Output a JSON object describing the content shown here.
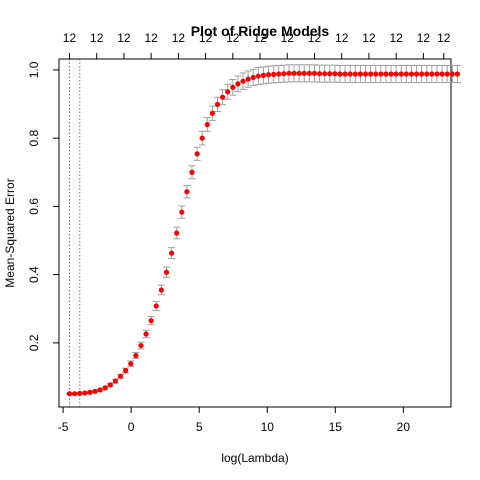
{
  "chart_data": {
    "type": "scatter",
    "title": "Plot of Ridge Models",
    "xlabel": "log(Lambda)",
    "ylabel": "Mean-Squared Error",
    "xlim": [
      -5.3,
      23.5
    ],
    "ylim": [
      0.012,
      1.032
    ],
    "x_ticks": [
      -5,
      0,
      5,
      10,
      15,
      20
    ],
    "y_ticks": [
      0.2,
      0.4,
      0.6,
      0.8,
      1.0
    ],
    "x_tick_labels": [
      "-5",
      "0",
      "5",
      "10",
      "15",
      "20"
    ],
    "y_tick_labels": [
      "0.2",
      "0.4",
      "0.6",
      "0.8",
      "1.0"
    ],
    "top_axis_positions": [
      -4.53,
      -2.53,
      -0.53,
      1.47,
      3.47,
      5.47,
      7.47,
      9.47,
      11.47,
      13.47,
      15.47,
      17.47,
      19.47,
      21.47,
      22.97
    ],
    "top_axis_labels": [
      "12",
      "12",
      "12",
      "12",
      "12",
      "12",
      "12",
      "12",
      "12",
      "12",
      "12",
      "12",
      "12",
      "12",
      "12"
    ],
    "vlines": [
      -4.53,
      -3.77
    ],
    "colors": {
      "points": "#ff0000",
      "errorbars": "#a0a0a0",
      "axes": "#000000",
      "vlines": "#555555"
    },
    "series": [
      {
        "x_start": -4.53,
        "x_step": 0.375,
        "y": [
          0.051,
          0.051,
          0.052,
          0.053,
          0.055,
          0.058,
          0.062,
          0.068,
          0.077,
          0.088,
          0.102,
          0.119,
          0.139,
          0.163,
          0.192,
          0.226,
          0.265,
          0.308,
          0.355,
          0.407,
          0.463,
          0.522,
          0.583,
          0.643,
          0.7,
          0.754,
          0.8,
          0.84,
          0.873,
          0.899,
          0.92,
          0.936,
          0.949,
          0.959,
          0.967,
          0.973,
          0.978,
          0.982,
          0.984,
          0.986,
          0.987,
          0.988,
          0.989,
          0.99,
          0.99,
          0.99,
          0.99,
          0.99,
          0.99,
          0.989,
          0.989,
          0.989,
          0.989,
          0.988,
          0.988,
          0.988,
          0.988,
          0.988,
          0.988,
          0.988,
          0.988,
          0.988,
          0.988,
          0.988,
          0.988,
          0.988,
          0.988,
          0.988,
          0.988,
          0.988,
          0.988,
          0.988,
          0.988,
          0.988,
          0.988,
          0.988,
          0.988
        ],
        "err": [
          0.002,
          0.002,
          0.002,
          0.002,
          0.002,
          0.002,
          0.003,
          0.003,
          0.004,
          0.005,
          0.006,
          0.007,
          0.008,
          0.009,
          0.01,
          0.011,
          0.012,
          0.013,
          0.014,
          0.015,
          0.016,
          0.017,
          0.018,
          0.018,
          0.019,
          0.019,
          0.02,
          0.02,
          0.021,
          0.021,
          0.022,
          0.022,
          0.023,
          0.023,
          0.024,
          0.024,
          0.024,
          0.025,
          0.025,
          0.025,
          0.025,
          0.025,
          0.025,
          0.025,
          0.025,
          0.025,
          0.025,
          0.025,
          0.025,
          0.025,
          0.025,
          0.025,
          0.025,
          0.025,
          0.025,
          0.025,
          0.025,
          0.025,
          0.025,
          0.025,
          0.025,
          0.025,
          0.025,
          0.025,
          0.025,
          0.025,
          0.025,
          0.025,
          0.025,
          0.025,
          0.025,
          0.025,
          0.025,
          0.025,
          0.025,
          0.025,
          0.025
        ]
      }
    ]
  }
}
